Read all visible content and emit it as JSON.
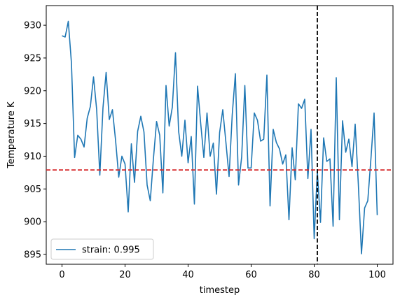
{
  "chart_data": {
    "type": "line",
    "title": "",
    "xlabel": "timestep",
    "ylabel": "Temperature K",
    "xlim": [
      -5,
      105
    ],
    "ylim": [
      893.5,
      933
    ],
    "xticks": [
      0,
      20,
      40,
      60,
      80,
      100
    ],
    "yticks": [
      895,
      900,
      905,
      910,
      915,
      920,
      925,
      930
    ],
    "grid": false,
    "legend_position": "lower-left",
    "series": [
      {
        "name": "strain: 0.995",
        "color": "#1f77b4",
        "x": [
          0,
          1,
          2,
          3,
          4,
          5,
          6,
          7,
          8,
          9,
          10,
          11,
          12,
          13,
          14,
          15,
          16,
          17,
          18,
          19,
          20,
          21,
          22,
          23,
          24,
          25,
          26,
          27,
          28,
          29,
          30,
          31,
          32,
          33,
          34,
          35,
          36,
          37,
          38,
          39,
          40,
          41,
          42,
          43,
          44,
          45,
          46,
          47,
          48,
          49,
          50,
          51,
          52,
          53,
          54,
          55,
          56,
          57,
          58,
          59,
          60,
          61,
          62,
          63,
          64,
          65,
          66,
          67,
          68,
          69,
          70,
          71,
          72,
          73,
          74,
          75,
          76,
          77,
          78,
          79,
          80,
          81,
          82,
          83,
          84,
          85,
          86,
          87,
          88,
          89,
          90,
          91,
          92,
          93,
          94,
          95,
          96,
          97,
          98,
          99,
          100
        ],
        "y": [
          928.4,
          928.2,
          930.6,
          924.2,
          909.8,
          913.2,
          912.6,
          911.4,
          915.8,
          917.6,
          922.1,
          917.1,
          907.1,
          917.4,
          922.8,
          915.6,
          917.1,
          912.4,
          906.8,
          910.0,
          908.8,
          901.5,
          911.9,
          906.0,
          913.8,
          916.1,
          913.7,
          905.6,
          903.2,
          909.6,
          915.3,
          913.2,
          904.4,
          920.8,
          914.6,
          917.5,
          925.8,
          913.8,
          910.0,
          915.5,
          909.0,
          913.0,
          902.7,
          920.7,
          915.0,
          909.8,
          916.6,
          910.0,
          912.0,
          904.2,
          913.6,
          917.1,
          912.1,
          906.9,
          916.3,
          922.6,
          905.6,
          909.9,
          920.8,
          908.2,
          908.2,
          916.6,
          915.5,
          912.3,
          912.6,
          922.4,
          902.4,
          914.1,
          912.1,
          911.1,
          908.8,
          910.2,
          900.3,
          911.3,
          906.4,
          918.0,
          917.3,
          918.7,
          906.6,
          914.1,
          897.4,
          907.7,
          899.9,
          912.8,
          909.2,
          909.6,
          899.3,
          922.0,
          900.3,
          915.4,
          910.6,
          912.6,
          908.4,
          914.9,
          905.8,
          895.1,
          902.1,
          903.2,
          909.6,
          916.6,
          901.0
        ]
      }
    ],
    "reference_lines": [
      {
        "orientation": "horizontal",
        "value": 907.9,
        "color": "#d62728",
        "style": "dashed"
      },
      {
        "orientation": "vertical",
        "value": 81,
        "color": "#000000",
        "style": "dashed"
      }
    ]
  }
}
